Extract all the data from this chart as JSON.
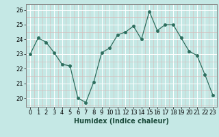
{
  "x": [
    0,
    1,
    2,
    3,
    4,
    5,
    6,
    7,
    8,
    9,
    10,
    11,
    12,
    13,
    14,
    15,
    16,
    17,
    18,
    19,
    20,
    21,
    22,
    23
  ],
  "y": [
    23.0,
    24.1,
    23.8,
    23.1,
    22.3,
    22.2,
    20.0,
    19.7,
    21.1,
    23.1,
    23.4,
    24.3,
    24.5,
    24.9,
    24.0,
    25.9,
    24.6,
    25.0,
    25.0,
    24.1,
    23.2,
    22.9,
    21.6,
    20.2
  ],
  "line_color": "#2e6e5e",
  "marker_size": 3,
  "bg_color": "#c5e8e5",
  "grid_color_major": "#ffffff",
  "grid_color_minor": "#d8b8b8",
  "xlabel": "Humidex (Indice chaleur)",
  "xlabel_fontsize": 7,
  "xlim": [
    -0.5,
    23.5
  ],
  "ylim": [
    19.4,
    26.4
  ],
  "yticks": [
    20,
    21,
    22,
    23,
    24,
    25,
    26
  ],
  "xticks": [
    0,
    1,
    2,
    3,
    4,
    5,
    6,
    7,
    8,
    9,
    10,
    11,
    12,
    13,
    14,
    15,
    16,
    17,
    18,
    19,
    20,
    21,
    22,
    23
  ],
  "tick_fontsize": 6,
  "spine_color": "#888888"
}
